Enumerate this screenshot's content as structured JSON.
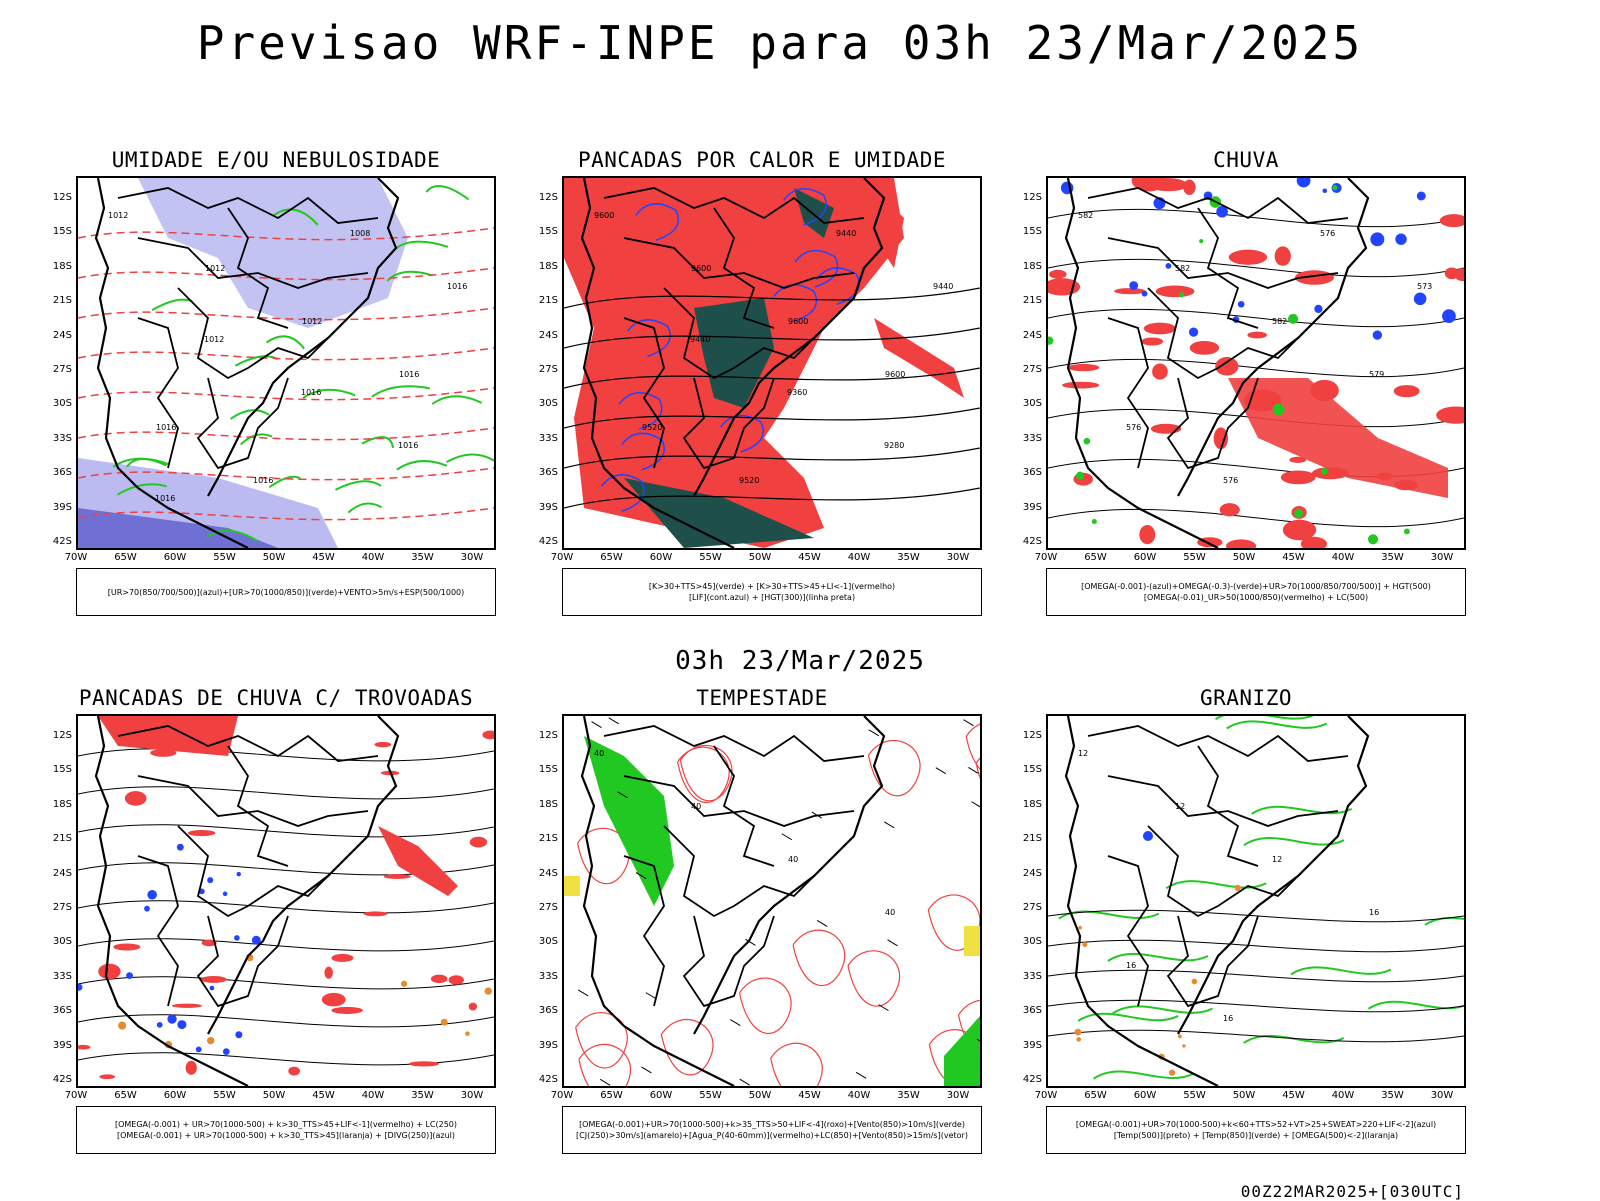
{
  "main_title": "Previsao WRF-INPE  para 03h 23/Mar/2025",
  "mid_title": "03h 23/Mar/2025",
  "footer": "00Z22MAR2025+[030UTC]",
  "lat_labels": [
    "12S",
    "15S",
    "18S",
    "21S",
    "24S",
    "27S",
    "30S",
    "33S",
    "36S",
    "39S",
    "42S"
  ],
  "lon_labels": [
    "70W",
    "65W",
    "60W",
    "55W",
    "50W",
    "45W",
    "40W",
    "35W",
    "30W"
  ],
  "colors": {
    "red": "#f04040",
    "green": "#22c822",
    "blue": "#2244ff",
    "lavender": "#b4b4f0",
    "darkgreen": "#1f4f4a",
    "orange": "#e88a2e",
    "yellow": "#f0e040",
    "black": "#000000"
  },
  "panels": [
    {
      "title": "UMIDADE E/OU NEBULOSIDADE",
      "legend1": "[UR>70(850/700/500)](azul)+[UR>70(1000/850)](verde)+VENTO>5m/s+ESP(500/1000)",
      "legend2": "",
      "contour_labels": [
        "1012",
        "1012",
        "1012",
        "1016",
        "1016",
        "1016",
        "1008",
        "1016",
        "1012",
        "1016",
        "1016",
        "1016"
      ]
    },
    {
      "title": "PANCADAS POR CALOR E UMIDADE",
      "legend1": "[K>30+TTS>45](verde) + [K>30+TTS>45+LI<-1](vermelho)",
      "legend2": "[LIF](cont.azul) + [HGT(300)](linha preta)",
      "contour_labels": [
        "9600",
        "9600",
        "9600",
        "9600",
        "9520",
        "9520",
        "9440",
        "9440",
        "9440",
        "9360",
        "9280"
      ]
    },
    {
      "title": "CHUVA",
      "legend1": "[OMEGA(-0.001)-(azul)+OMEGA(-0.3)-(verde)+UR>70(1000/850/700/500)] + HGT(500)",
      "legend2": "[OMEGA(-0.01)_UR>50(1000/850)(vermelho) + LC(500)",
      "contour_labels": [
        "582",
        "582",
        "582",
        "579",
        "576",
        "576",
        "576",
        "573"
      ]
    },
    {
      "title": "PANCADAS DE CHUVA C/ TROVOADAS",
      "legend1": "[OMEGA(-0.001) + UR>70(1000-500) + k>30_TTS>45+LIF<-1](vermelho) + LC(250)",
      "legend2": "[OMEGA(-0.001) + UR>70(1000-500) + k>30_TTS>45](laranja) + [DIVG(250)](azul)",
      "contour_labels": []
    },
    {
      "title": "TEMPESTADE",
      "legend1": "[OMEGA(-0.001)+UR>70(1000-500)+k>35_TTS>50+LIF<-4](roxo)+[Vento(850)>10m/s](verde)",
      "legend2": "[CJ(250)>30m/s](amarelo)+[Agua_P(40-60mm)](vermelho)+LC(850)+[Vento(850)>15m/s](vetor)",
      "contour_labels": [
        "40",
        "40",
        "40",
        "40"
      ]
    },
    {
      "title": "GRANIZO",
      "legend1": "[OMEGA(-0.001)+UR>70(1000-500)+k<60+TTS>52+VT>25+SWEAT>220+LIF<-2](azul)",
      "legend2": "[Temp(500)](preto) + [Temp(850)](verde) + [OMEGA(500)<-2](laranja)",
      "contour_labels": [
        "12",
        "12",
        "12",
        "16",
        "16",
        "16"
      ]
    }
  ]
}
